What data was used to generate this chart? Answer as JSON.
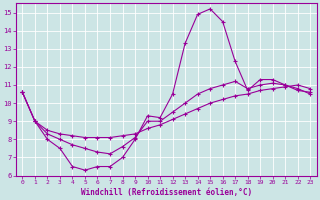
{
  "xlabel": "Windchill (Refroidissement éolien,°C)",
  "bg_color": "#cce5e5",
  "line_color": "#990099",
  "grid_color": "#ffffff",
  "xlim": [
    -0.5,
    23.5
  ],
  "ylim": [
    6,
    15.5
  ],
  "xticks": [
    0,
    1,
    2,
    3,
    4,
    5,
    6,
    7,
    8,
    9,
    10,
    11,
    12,
    13,
    14,
    15,
    16,
    17,
    18,
    19,
    20,
    21,
    22,
    23
  ],
  "yticks": [
    6,
    7,
    8,
    9,
    10,
    11,
    12,
    13,
    14,
    15
  ],
  "line1_x": [
    0,
    1,
    2,
    3,
    4,
    5,
    6,
    7,
    8,
    9,
    10,
    11,
    12,
    13,
    14,
    15,
    16,
    17,
    18,
    19,
    20,
    21,
    22,
    23
  ],
  "line1_y": [
    10.6,
    9.0,
    8.0,
    7.5,
    6.5,
    6.3,
    6.5,
    6.5,
    7.0,
    8.0,
    9.3,
    9.2,
    10.5,
    13.3,
    14.9,
    15.2,
    14.5,
    12.3,
    10.7,
    11.3,
    11.3,
    11.0,
    10.8,
    10.5
  ],
  "line2_x": [
    0,
    1,
    2,
    3,
    4,
    5,
    6,
    7,
    8,
    9,
    10,
    11,
    12,
    13,
    14,
    15,
    16,
    17,
    18,
    19,
    20,
    21,
    22,
    23
  ],
  "line2_y": [
    10.6,
    9.0,
    8.5,
    8.3,
    8.2,
    8.1,
    8.1,
    8.1,
    8.2,
    8.3,
    8.6,
    8.8,
    9.1,
    9.4,
    9.7,
    10.0,
    10.2,
    10.4,
    10.5,
    10.7,
    10.8,
    10.9,
    11.0,
    10.8
  ],
  "line3_x": [
    0,
    1,
    2,
    3,
    4,
    5,
    6,
    7,
    8,
    9,
    10,
    11,
    12,
    13,
    14,
    15,
    16,
    17,
    18,
    19,
    20,
    21,
    22,
    23
  ],
  "line3_y": [
    10.6,
    9.0,
    8.3,
    8.0,
    7.7,
    7.5,
    7.3,
    7.2,
    7.6,
    8.1,
    9.0,
    9.0,
    9.5,
    10.0,
    10.5,
    10.8,
    11.0,
    11.2,
    10.8,
    11.0,
    11.1,
    11.0,
    10.7,
    10.6
  ],
  "marker": "+",
  "markersize": 3,
  "linewidth": 0.8,
  "tick_fontsize": 4.5,
  "xlabel_fontsize": 5.5
}
